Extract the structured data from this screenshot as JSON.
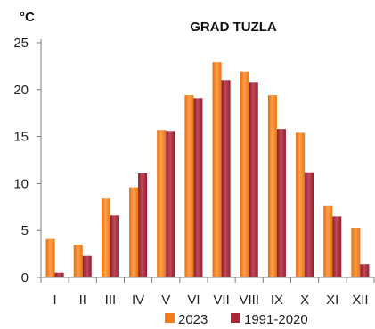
{
  "chart_data": {
    "type": "bar",
    "title": "GRAD TUZLA",
    "unit_label": "°C",
    "categories": [
      "I",
      "II",
      "III",
      "IV",
      "V",
      "VI",
      "VII",
      "VIII",
      "IX",
      "X",
      "XI",
      "XII"
    ],
    "series": [
      {
        "name": "2023",
        "values": [
          4.1,
          3.5,
          8.4,
          9.6,
          15.7,
          19.4,
          22.9,
          21.9,
          19.4,
          15.4,
          7.6,
          5.3
        ],
        "color": "#f47c1b"
      },
      {
        "name": "1991-2020",
        "values": [
          0.5,
          2.3,
          6.6,
          11.1,
          15.6,
          19.1,
          21.0,
          20.8,
          15.8,
          11.2,
          6.5,
          1.4
        ],
        "color": "#a8283a"
      }
    ],
    "ylim": [
      0,
      25
    ],
    "yticks": [
      0,
      5,
      10,
      15,
      20,
      25
    ],
    "grid": false,
    "legend_position": "bottom"
  }
}
